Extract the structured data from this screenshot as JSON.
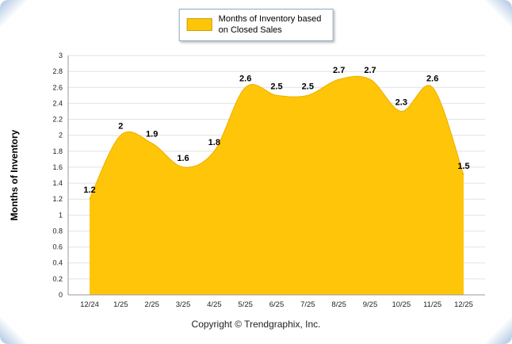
{
  "legend": {
    "label_line1": "Months of Inventory based",
    "label_line2": "on Closed Sales"
  },
  "footer": {
    "copyright": "Copyright © Trendgraphix, Inc."
  },
  "chart_data": {
    "type": "area",
    "title": "",
    "xlabel": "",
    "ylabel": "Months of Inventory",
    "categories": [
      "12/24",
      "1/25",
      "2/25",
      "3/25",
      "4/25",
      "5/25",
      "6/25",
      "7/25",
      "8/25",
      "9/25",
      "10/25",
      "11/25",
      "12/25"
    ],
    "values": [
      1.2,
      2,
      1.9,
      1.6,
      1.8,
      2.6,
      2.5,
      2.5,
      2.7,
      2.7,
      2.3,
      2.6,
      1.5
    ],
    "point_labels": [
      "1.2",
      "2",
      "1.9",
      "1.6",
      "1.8",
      "2.6",
      "2.5",
      "2.5",
      "2.7",
      "2.7",
      "2.3",
      "2.6",
      "1.5"
    ],
    "ylim": [
      0,
      3
    ],
    "ytick_step": 0.2,
    "grid": true,
    "legend_position": "top",
    "legend_entries": [
      "Months of Inventory based on Closed Sales"
    ],
    "colors": {
      "area_fill": "#FFC609",
      "area_stroke": "#F2B200",
      "grid": "#E2E2E2",
      "axis": "#9a9a9a",
      "tick_text": "#222222",
      "value_label": "#000000"
    }
  }
}
